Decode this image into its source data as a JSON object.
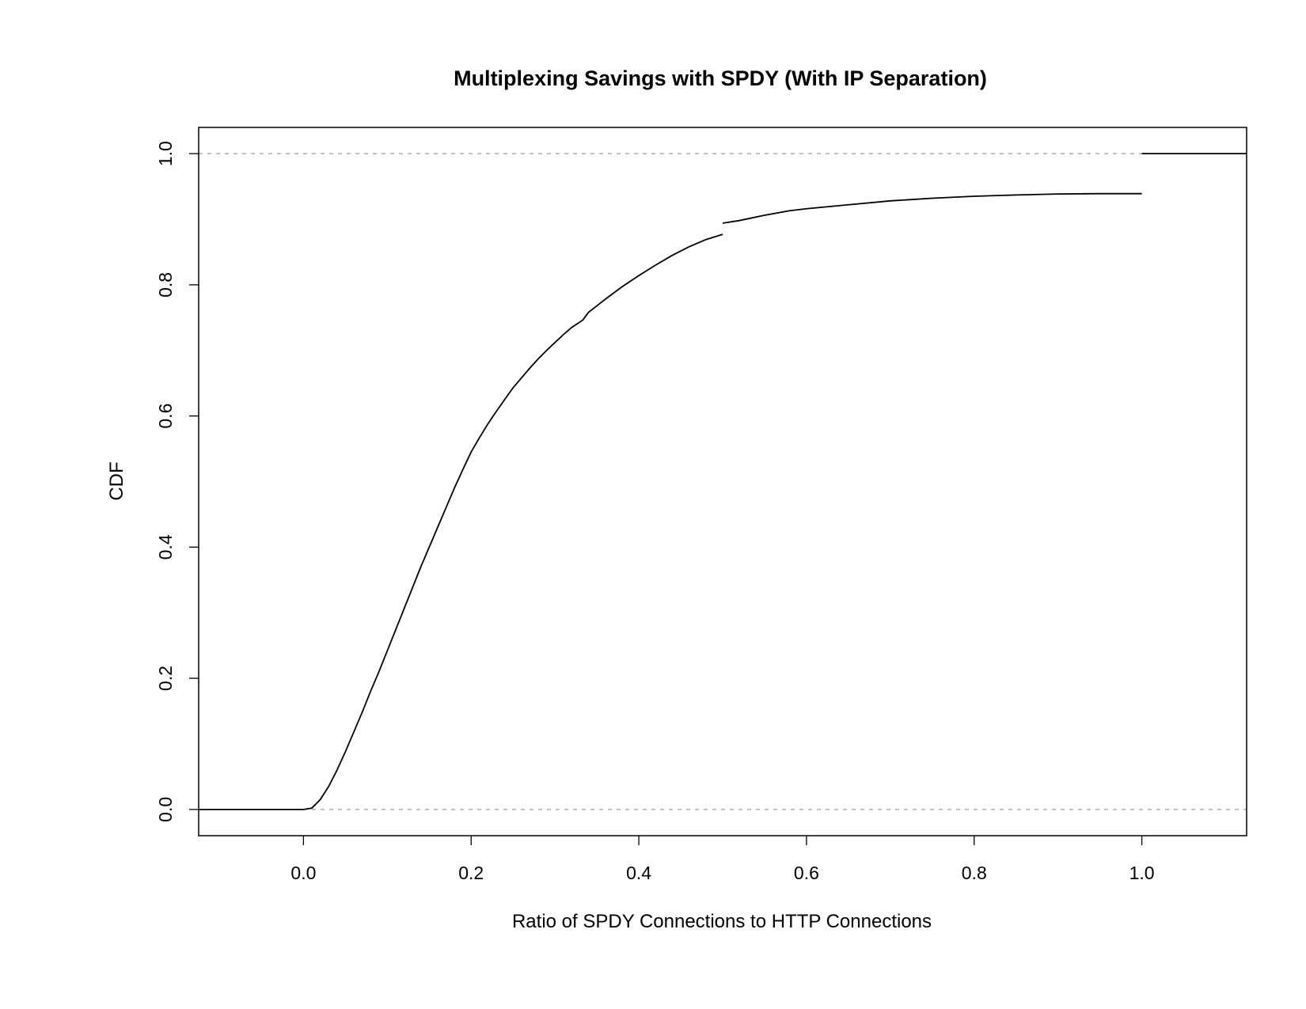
{
  "chart_data": {
    "type": "line",
    "title": "Multiplexing Savings with SPDY (With IP Separation)",
    "xlabel": "Ratio of SPDY Connections to HTTP Connections",
    "ylabel": "CDF",
    "xlim": [
      -0.125,
      1.125
    ],
    "ylim": [
      -0.04,
      1.04
    ],
    "x_ticks": [
      "0.0",
      "0.2",
      "0.4",
      "0.6",
      "0.8",
      "1.0"
    ],
    "y_ticks": [
      "0.0",
      "0.2",
      "0.4",
      "0.6",
      "0.8",
      "1.0"
    ],
    "x_tick_values": [
      0.0,
      0.2,
      0.4,
      0.6,
      0.8,
      1.0
    ],
    "y_tick_values": [
      0.0,
      0.2,
      0.4,
      0.6,
      0.8,
      1.0
    ],
    "reference_lines": [
      0.0,
      1.0
    ],
    "grid": false,
    "legend": "none",
    "series": [
      {
        "segments": [
          [
            [
              -0.125,
              0.0
            ],
            [
              0.0,
              0.0
            ],
            [
              0.01,
              0.002
            ],
            [
              0.02,
              0.015
            ],
            [
              0.03,
              0.035
            ],
            [
              0.04,
              0.06
            ],
            [
              0.05,
              0.088
            ],
            [
              0.06,
              0.118
            ],
            [
              0.07,
              0.148
            ],
            [
              0.08,
              0.18
            ],
            [
              0.09,
              0.21
            ],
            [
              0.1,
              0.242
            ],
            [
              0.11,
              0.274
            ],
            [
              0.12,
              0.306
            ],
            [
              0.13,
              0.338
            ],
            [
              0.14,
              0.37
            ],
            [
              0.15,
              0.4
            ],
            [
              0.16,
              0.43
            ],
            [
              0.17,
              0.46
            ],
            [
              0.18,
              0.49
            ],
            [
              0.19,
              0.518
            ],
            [
              0.2,
              0.545
            ],
            [
              0.21,
              0.567
            ],
            [
              0.22,
              0.588
            ],
            [
              0.23,
              0.607
            ],
            [
              0.24,
              0.625
            ],
            [
              0.25,
              0.643
            ],
            [
              0.26,
              0.658
            ],
            [
              0.27,
              0.673
            ],
            [
              0.28,
              0.687
            ],
            [
              0.29,
              0.7
            ],
            [
              0.3,
              0.712
            ],
            [
              0.31,
              0.724
            ],
            [
              0.32,
              0.735
            ],
            [
              0.333,
              0.746
            ],
            [
              0.34,
              0.758
            ],
            [
              0.35,
              0.768
            ],
            [
              0.36,
              0.778
            ],
            [
              0.38,
              0.797
            ],
            [
              0.4,
              0.814
            ],
            [
              0.42,
              0.83
            ],
            [
              0.44,
              0.845
            ],
            [
              0.46,
              0.858
            ],
            [
              0.48,
              0.869
            ],
            [
              0.5,
              0.877
            ]
          ],
          [
            [
              0.5,
              0.894
            ],
            [
              0.52,
              0.898
            ],
            [
              0.55,
              0.906
            ],
            [
              0.58,
              0.913
            ],
            [
              0.6,
              0.916
            ],
            [
              0.65,
              0.922
            ],
            [
              0.7,
              0.928
            ],
            [
              0.75,
              0.932
            ],
            [
              0.8,
              0.935
            ],
            [
              0.85,
              0.937
            ],
            [
              0.9,
              0.9385
            ],
            [
              0.95,
              0.939
            ],
            [
              1.0,
              0.939
            ]
          ],
          [
            [
              1.0,
              1.0
            ],
            [
              1.125,
              1.0
            ]
          ]
        ]
      }
    ]
  }
}
